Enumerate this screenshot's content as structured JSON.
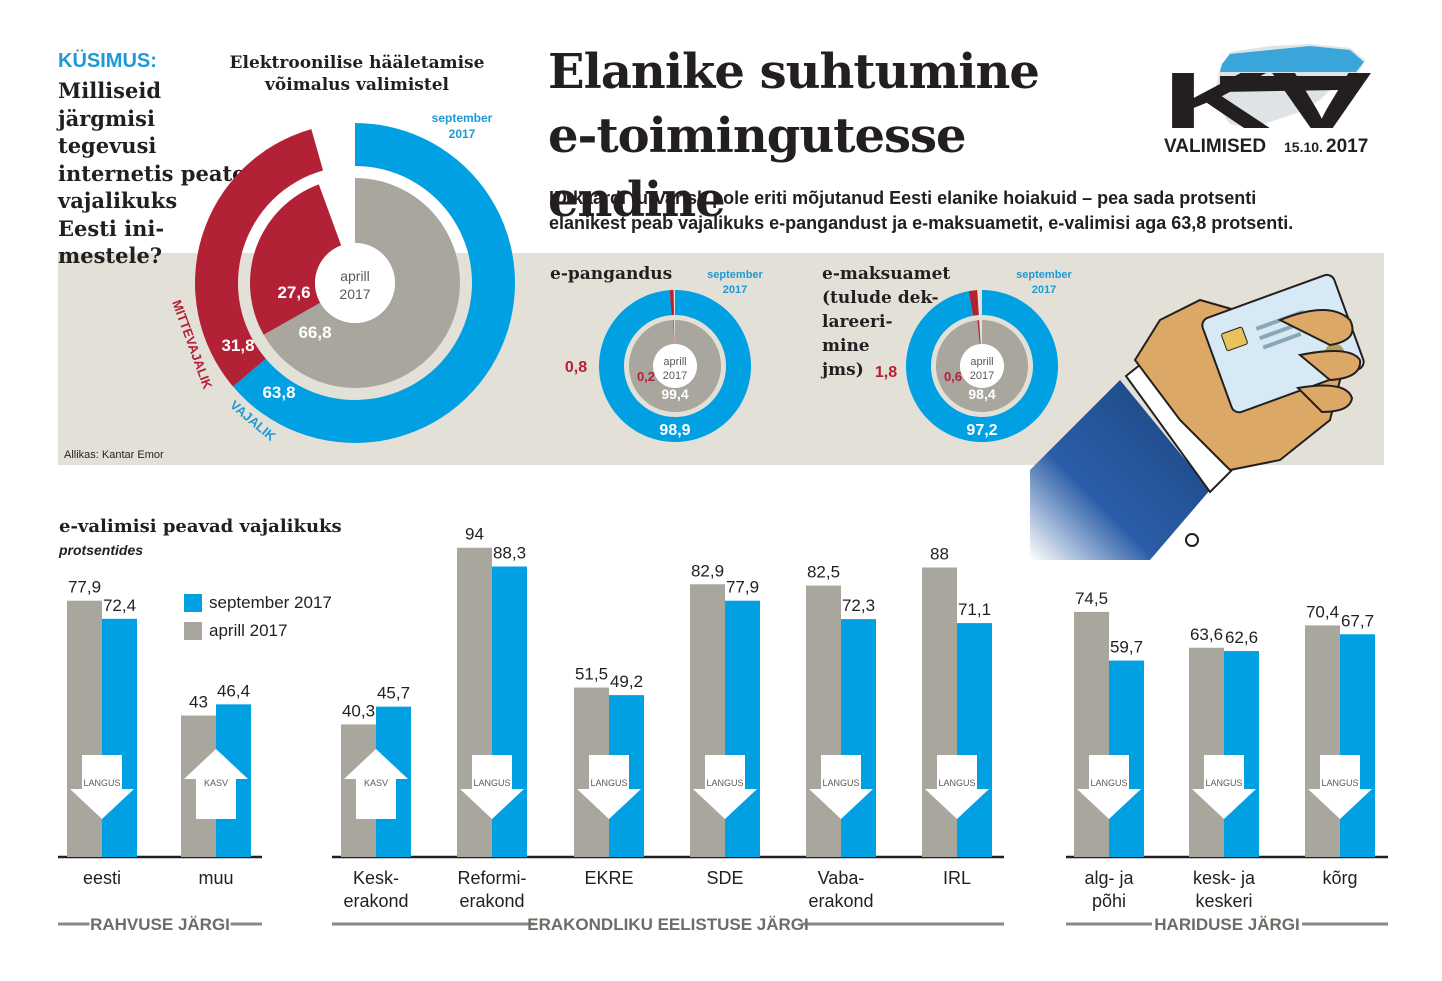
{
  "question": {
    "label": "KÜSIMUS:",
    "lines": [
      "Milliseid",
      "järgmisi tegevusi",
      "internetis peate",
      "vajalikuks",
      "Eesti ini-",
      "mestele?"
    ]
  },
  "main_title": [
    "Elanike suhtumine",
    "e-toimingutesse endine"
  ],
  "lead": [
    "ID-kaardi turvarisk pole eriti mõjutanud Eesti elanike hoiakuid – pea sada protsenti",
    "elanikest peab vajalikuks e-pangandust ja e-maksuametit, e-valimisi aga 63,8 protsenti."
  ],
  "logo": {
    "letters": "KV",
    "caption": "VALIMISED",
    "date": "15.10.",
    "year": "2017"
  },
  "source": "Allikas: Kantar Emor",
  "colors": {
    "red": "#b32137",
    "blue": "#00a0e3",
    "gray": "#a8a69d",
    "band": "#e3e1d7",
    "hand": "#dca866",
    "sleeve": "#1f4f8f"
  },
  "chart_data": [
    {
      "type": "pie",
      "title": [
        "Elektroonilise hääletamise",
        "võimalus valimistel"
      ],
      "outer": {
        "label": [
          "september",
          "2017"
        ],
        "slices": [
          {
            "name": "VAJALIK",
            "value": 63.8,
            "text": "63,8"
          },
          {
            "name": "MITTEVAJALIK",
            "value": 31.8,
            "text": "31,8"
          }
        ]
      },
      "inner": {
        "label": [
          "aprill",
          "2017"
        ],
        "slices": [
          {
            "name": "VAJALIK",
            "value": 66.8,
            "text": "66,8"
          },
          {
            "name": "MITTEVAJALIK",
            "value": 27.6,
            "text": "27,6"
          }
        ]
      },
      "labels": {
        "yes": "VAJALIK",
        "no": "MITTEVAJALIK"
      }
    },
    {
      "type": "pie",
      "title": [
        "e-pangandus"
      ],
      "outer": {
        "label": [
          "september",
          "2017"
        ],
        "slices": [
          {
            "name": "vajalik",
            "value": 98.9,
            "text": "98,9"
          },
          {
            "name": "mittevajalik",
            "value": 0.8,
            "text": "0,8"
          }
        ]
      },
      "inner": {
        "label": [
          "aprill",
          "2017"
        ],
        "slices": [
          {
            "name": "vajalik",
            "value": 99.4,
            "text": "99,4"
          },
          {
            "name": "mittevajalik",
            "value": 0.2,
            "text": "0,2"
          }
        ]
      }
    },
    {
      "type": "pie",
      "title": [
        "e-maksuamet",
        "(tulude dek-",
        "lareeri-",
        "mine",
        "jms)"
      ],
      "outer": {
        "label": [
          "september",
          "2017"
        ],
        "slices": [
          {
            "name": "vajalik",
            "value": 97.2,
            "text": "97,2"
          },
          {
            "name": "mittevajalik",
            "value": 1.8,
            "text": "1,8"
          }
        ]
      },
      "inner": {
        "label": [
          "aprill",
          "2017"
        ],
        "slices": [
          {
            "name": "vajalik",
            "value": 98.4,
            "text": "98,4"
          },
          {
            "name": "mittevajalik",
            "value": 0.6,
            "text": "0,6"
          }
        ]
      }
    },
    {
      "type": "bar",
      "title": "e-valimisi peavad vajalikuks",
      "subtitle": "protsentides",
      "legend": [
        "september 2017",
        "aprill 2017"
      ],
      "series": [
        {
          "name": "aprill 2017"
        },
        {
          "name": "september 2017"
        }
      ],
      "groups": [
        {
          "name": "RAHVUSE JÄRGI",
          "categories": [
            {
              "label": [
                "eesti"
              ],
              "april": 77.9,
              "april_text": "77,9",
              "sept": 72.4,
              "sept_text": "72,4",
              "change": "LANGUS"
            },
            {
              "label": [
                "muu"
              ],
              "april": 43,
              "april_text": "43",
              "sept": 46.4,
              "sept_text": "46,4",
              "change": "KASV"
            }
          ]
        },
        {
          "name": "ERAKONDLIKU EELISTUSE JÄRGI",
          "categories": [
            {
              "label": [
                "Kesk-",
                "erakond"
              ],
              "april": 40.3,
              "april_text": "40,3",
              "sept": 45.7,
              "sept_text": "45,7",
              "change": "KASV"
            },
            {
              "label": [
                "Reformi-",
                "erakond"
              ],
              "april": 94,
              "april_text": "94",
              "sept": 88.3,
              "sept_text": "88,3",
              "change": "LANGUS"
            },
            {
              "label": [
                "EKRE"
              ],
              "april": 51.5,
              "april_text": "51,5",
              "sept": 49.2,
              "sept_text": "49,2",
              "change": "LANGUS"
            },
            {
              "label": [
                "SDE"
              ],
              "april": 82.9,
              "april_text": "82,9",
              "sept": 77.9,
              "sept_text": "77,9",
              "change": "LANGUS"
            },
            {
              "label": [
                "Vaba-",
                "erakond"
              ],
              "april": 82.5,
              "april_text": "82,5",
              "sept": 72.3,
              "sept_text": "72,3",
              "change": "LANGUS"
            },
            {
              "label": [
                "IRL"
              ],
              "april": 88,
              "april_text": "88",
              "sept": 71.1,
              "sept_text": "71,1",
              "change": "LANGUS"
            }
          ]
        },
        {
          "name": "HARIDUSE JÄRGI",
          "categories": [
            {
              "label": [
                "alg- ja",
                "põhi"
              ],
              "april": 74.5,
              "april_text": "74,5",
              "sept": 59.7,
              "sept_text": "59,7",
              "change": "LANGUS"
            },
            {
              "label": [
                "kesk- ja",
                "keskeri"
              ],
              "april": 63.6,
              "april_text": "63,6",
              "sept": 62.6,
              "sept_text": "62,6",
              "change": "LANGUS"
            },
            {
              "label": [
                "kõrg"
              ],
              "april": 70.4,
              "april_text": "70,4",
              "sept": 67.7,
              "sept_text": "67,7",
              "change": "LANGUS"
            }
          ]
        }
      ]
    }
  ]
}
